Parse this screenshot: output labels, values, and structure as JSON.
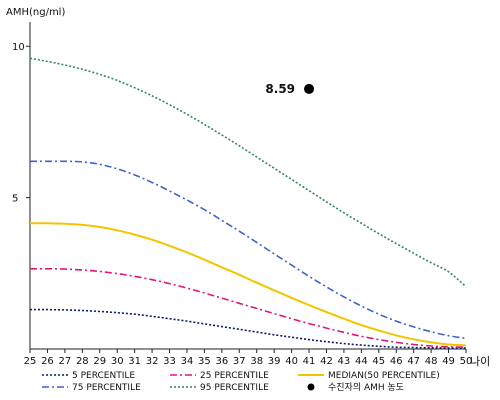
{
  "chart_data": {
    "type": "line",
    "ylabel": "AMH(ng/ml)",
    "xlabel": "나이",
    "y_ticks": [
      5,
      10
    ],
    "ylim": [
      0,
      10.8
    ],
    "x": [
      25,
      26,
      27,
      28,
      29,
      30,
      31,
      32,
      33,
      34,
      35,
      36,
      37,
      38,
      39,
      40,
      41,
      42,
      43,
      44,
      45,
      46,
      47,
      48,
      49,
      50
    ],
    "series": [
      {
        "name": "5 PERCENTILE",
        "color": "#0a1a6b",
        "dash": "2,2",
        "values": [
          1.3,
          1.3,
          1.29,
          1.27,
          1.24,
          1.2,
          1.15,
          1.08,
          1.0,
          0.92,
          0.83,
          0.74,
          0.65,
          0.56,
          0.47,
          0.39,
          0.31,
          0.24,
          0.18,
          0.13,
          0.09,
          0.06,
          0.05,
          0.04,
          0.03,
          0.03
        ]
      },
      {
        "name": "25 PERCENTILE",
        "color": "#e0157f",
        "dash": "7,3,2,3",
        "values": [
          2.65,
          2.65,
          2.64,
          2.61,
          2.56,
          2.49,
          2.4,
          2.29,
          2.16,
          2.01,
          1.85,
          1.68,
          1.51,
          1.34,
          1.17,
          1.0,
          0.84,
          0.69,
          0.55,
          0.42,
          0.31,
          0.22,
          0.15,
          0.1,
          0.07,
          0.06
        ]
      },
      {
        "name": "MEDIAN(50 PERCENTILE)",
        "color": "#f5c400",
        "dash": "",
        "values": [
          4.15,
          4.15,
          4.14,
          4.1,
          4.03,
          3.92,
          3.78,
          3.61,
          3.41,
          3.19,
          2.95,
          2.7,
          2.45,
          2.19,
          1.94,
          1.69,
          1.45,
          1.22,
          1.0,
          0.79,
          0.61,
          0.45,
          0.32,
          0.22,
          0.15,
          0.12
        ]
      },
      {
        "name": "75 PERCENTILE",
        "color": "#3f63c9",
        "dash": "7,3,2,3",
        "values": [
          6.2,
          6.2,
          6.2,
          6.18,
          6.1,
          5.95,
          5.75,
          5.5,
          5.22,
          4.92,
          4.6,
          4.25,
          3.89,
          3.52,
          3.14,
          2.77,
          2.4,
          2.05,
          1.72,
          1.42,
          1.15,
          0.92,
          0.73,
          0.57,
          0.44,
          0.35
        ]
      },
      {
        "name": "95 PERCENTILE",
        "color": "#2e8b57",
        "dash": "2,2",
        "values": [
          9.6,
          9.5,
          9.38,
          9.24,
          9.07,
          8.87,
          8.63,
          8.36,
          8.07,
          7.75,
          7.42,
          7.07,
          6.71,
          6.34,
          5.97,
          5.6,
          5.23,
          4.86,
          4.5,
          4.15,
          3.81,
          3.48,
          3.16,
          2.85,
          2.55,
          2.06
        ]
      }
    ],
    "highlight": {
      "name": "수진자의 AMH 농도",
      "x": 41,
      "y": 8.59,
      "label": "8.59",
      "color": "#000000"
    },
    "legend_placement": "bottom"
  }
}
